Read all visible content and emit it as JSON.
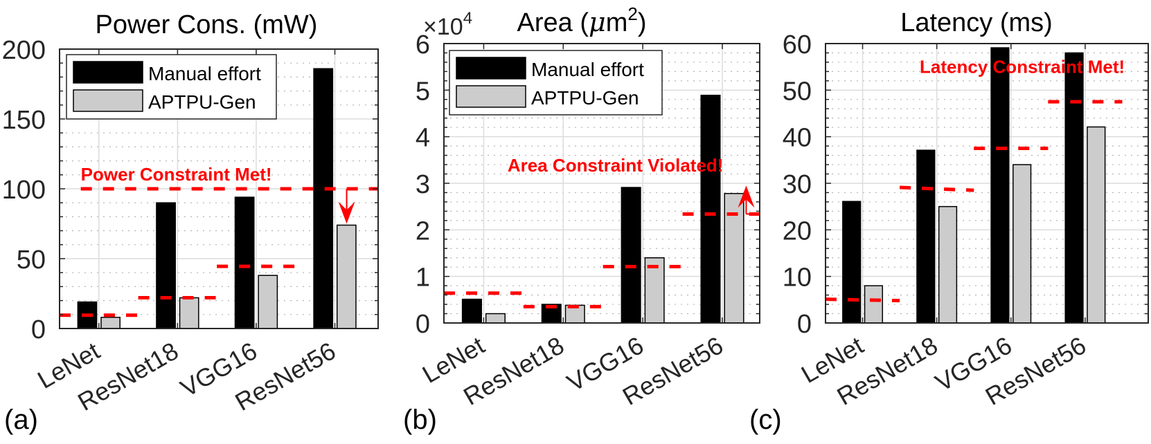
{
  "colors": {
    "manual": "#000000",
    "aptpu": "#cccccc",
    "constraint": "#ff0000",
    "axis": "#262626",
    "grid_major": "#dcdcdc",
    "grid_minor": "#b4b4b4"
  },
  "chart_data": [
    {
      "type": "bar",
      "panel_label": "(a)",
      "title": "Power Cons. (mW)",
      "title_exponent": "",
      "axis_multiplier": "",
      "xlabel": "",
      "ylabel": "",
      "categories": [
        "LeNet",
        "ResNet18",
        "VGG16",
        "ResNet56"
      ],
      "ylim": [
        0,
        200
      ],
      "yticks": [
        0,
        50,
        100,
        150,
        200
      ],
      "ytick_labels": [
        "0",
        "50",
        "100",
        "150",
        "200"
      ],
      "y_minor_step": 10,
      "xlim": [
        0.5,
        4.55
      ],
      "grid": true,
      "legend": {
        "placement": "top-left",
        "entries": [
          "Manual effort",
          "APTPU-Gen"
        ]
      },
      "series": [
        {
          "name": "Manual effort",
          "values": [
            19,
            90,
            94,
            186
          ]
        },
        {
          "name": "APTPU-Gen",
          "values": [
            8,
            22,
            38,
            74
          ]
        }
      ],
      "constraints": [
        {
          "category": "LeNet",
          "value_start": 9.5,
          "value_end": 9.5
        },
        {
          "category": "ResNet18",
          "value_start": 22,
          "value_end": 22
        },
        {
          "category": "VGG16",
          "value_start": 44.5,
          "value_end": 44.5
        }
      ],
      "global_constraint": {
        "value": 100,
        "from_x": 0.77,
        "to_x": 4.55
      },
      "annotation": {
        "text": "Power Constraint Met!",
        "x": 0.77,
        "y": 106
      },
      "arrow": {
        "x": 4.15,
        "from_y": 100,
        "to_y": 75,
        "direction": "down"
      }
    },
    {
      "type": "bar",
      "panel_label": "(b)",
      "title": "Area (",
      "title_unit_mu": "μ",
      "title_unit_rest": "m",
      "title_exponent": "2",
      "title_close": ")",
      "axis_multiplier": "×10",
      "axis_multiplier_exp": "4",
      "xlabel": "",
      "ylabel": "",
      "categories": [
        "LeNet",
        "ResNet18",
        "VGG16",
        "ResNet56"
      ],
      "ylim": [
        0,
        6
      ],
      "yticks": [
        0,
        1,
        2,
        3,
        4,
        5,
        6
      ],
      "ytick_labels": [
        "0",
        "1",
        "2",
        "3",
        "4",
        "5",
        "6"
      ],
      "y_minor_step": 0.2,
      "xlim": [
        0.5,
        4.47
      ],
      "grid": true,
      "legend": {
        "placement": "top-left",
        "entries": [
          "Manual effort",
          "APTPU-Gen"
        ]
      },
      "series": [
        {
          "name": "Manual effort",
          "values": [
            0.51,
            0.4,
            2.91,
            4.89
          ]
        },
        {
          "name": "APTPU-Gen",
          "values": [
            0.2,
            0.38,
            1.4,
            2.78
          ]
        }
      ],
      "constraints": [
        {
          "category": "LeNet",
          "value_start": 0.64,
          "value_end": 0.64
        },
        {
          "category": "ResNet18",
          "value_start": 0.35,
          "value_end": 0.35
        },
        {
          "category": "VGG16",
          "value_start": 1.21,
          "value_end": 1.21
        },
        {
          "category": "ResNet56",
          "value_start": 2.34,
          "value_end": 2.34
        }
      ],
      "annotation": {
        "text": "Area Constraint Violated!",
        "x": 1.3,
        "y": 3.25
      },
      "arrow": {
        "x": 4.3,
        "from_y": 2.34,
        "to_y": 2.95,
        "direction": "up"
      }
    },
    {
      "type": "bar",
      "panel_label": "(c)",
      "title": "Latency (ms)",
      "title_exponent": "",
      "axis_multiplier": "",
      "xlabel": "",
      "ylabel": "",
      "categories": [
        "LeNet",
        "ResNet18",
        "VGG16",
        "ResNet56"
      ],
      "ylim": [
        0,
        60
      ],
      "yticks": [
        0,
        10,
        20,
        30,
        40,
        50,
        60
      ],
      "ytick_labels": [
        "0",
        "10",
        "20",
        "30",
        "40",
        "50",
        "60"
      ],
      "y_minor_step": 2,
      "xlim": [
        0.5,
        4.85
      ],
      "grid": true,
      "legend": null,
      "series": [
        {
          "name": "Manual effort",
          "values": [
            26.1,
            37.1,
            59.1,
            58.0
          ]
        },
        {
          "name": "APTPU-Gen",
          "values": [
            8.0,
            25.0,
            34.0,
            42.1
          ]
        }
      ],
      "constraints": [
        {
          "category": "LeNet",
          "value_start": 5.1,
          "value_end": 4.8
        },
        {
          "category": "ResNet18",
          "value_start": 29.1,
          "value_end": 28.5
        },
        {
          "category": "VGG16",
          "value_start": 37.5,
          "value_end": 37.5
        },
        {
          "category": "ResNet56",
          "value_start": 47.5,
          "value_end": 47.5
        }
      ],
      "annotation": {
        "text": "Latency Constraint Met!",
        "x": 1.77,
        "y": 53.7
      },
      "arrow": null
    }
  ]
}
